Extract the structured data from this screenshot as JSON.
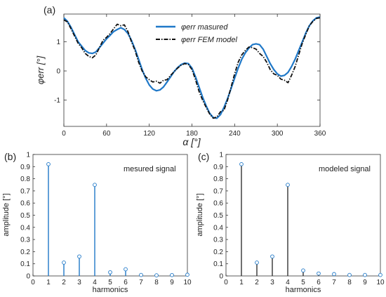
{
  "colors": {
    "measured": "#1f78c8",
    "model": "#111111",
    "stem_b": "#1f78c8",
    "stem_c": "#333333",
    "axis": "#333333"
  },
  "panel_a": {
    "letter": "(a)"
  },
  "panel_b": {
    "letter": "(b)",
    "annotation": "mesured signal"
  },
  "panel_c": {
    "letter": "(c)",
    "annotation": "modeled signal"
  },
  "chart_data": [
    {
      "type": "line",
      "xlabel": "α [°]",
      "ylabel": "φerr [°]",
      "xlim": [
        0,
        360
      ],
      "ylim": [
        -1.9,
        1.95
      ],
      "xticks": [
        "0",
        "60",
        "120",
        "180",
        "240",
        "300",
        "360"
      ],
      "yticks": [
        "-1",
        "0",
        "1"
      ],
      "legend_position": "top-center",
      "series": [
        {
          "name": "φerr masured",
          "style": "solid",
          "x": [
            0,
            5,
            10,
            15,
            20,
            25,
            30,
            35,
            40,
            45,
            50,
            55,
            60,
            65,
            70,
            75,
            80,
            85,
            90,
            95,
            100,
            105,
            110,
            115,
            120,
            125,
            130,
            135,
            140,
            145,
            150,
            155,
            160,
            165,
            170,
            175,
            180,
            185,
            190,
            195,
            200,
            205,
            210,
            215,
            220,
            225,
            230,
            235,
            240,
            245,
            250,
            255,
            260,
            265,
            270,
            275,
            280,
            285,
            290,
            295,
            300,
            305,
            310,
            315,
            320,
            325,
            330,
            335,
            340,
            345,
            350,
            355,
            360
          ],
          "y": [
            1.82,
            1.7,
            1.5,
            1.25,
            1.0,
            0.85,
            0.7,
            0.62,
            0.6,
            0.65,
            0.8,
            0.95,
            1.1,
            1.22,
            1.35,
            1.42,
            1.48,
            1.42,
            1.28,
            1.05,
            0.75,
            0.4,
            0.05,
            -0.25,
            -0.48,
            -0.62,
            -0.68,
            -0.65,
            -0.55,
            -0.38,
            -0.2,
            -0.02,
            0.12,
            0.22,
            0.27,
            0.25,
            0.1,
            -0.2,
            -0.55,
            -0.9,
            -1.2,
            -1.45,
            -1.6,
            -1.62,
            -1.5,
            -1.25,
            -0.95,
            -0.6,
            -0.25,
            0.1,
            0.4,
            0.62,
            0.78,
            0.9,
            0.93,
            0.9,
            0.75,
            0.5,
            0.25,
            0.05,
            -0.1,
            -0.18,
            -0.15,
            -0.05,
            0.15,
            0.4,
            0.7,
            1.0,
            1.3,
            1.55,
            1.72,
            1.82,
            1.85
          ]
        },
        {
          "name": "φerr FEM model",
          "style": "dashdot",
          "x": [
            0,
            5,
            10,
            15,
            20,
            25,
            30,
            35,
            40,
            45,
            50,
            55,
            60,
            65,
            70,
            75,
            80,
            85,
            90,
            95,
            100,
            105,
            110,
            115,
            120,
            125,
            130,
            135,
            140,
            145,
            150,
            155,
            160,
            165,
            170,
            175,
            180,
            185,
            190,
            195,
            200,
            205,
            210,
            215,
            220,
            225,
            230,
            235,
            240,
            245,
            250,
            255,
            260,
            265,
            270,
            275,
            280,
            285,
            290,
            295,
            300,
            305,
            310,
            315,
            320,
            325,
            330,
            335,
            340,
            345,
            350,
            355,
            360
          ],
          "y": [
            1.75,
            1.68,
            1.45,
            1.2,
            0.95,
            0.8,
            0.6,
            0.5,
            0.45,
            0.55,
            0.8,
            1.05,
            1.15,
            1.28,
            1.45,
            1.6,
            1.55,
            1.58,
            1.35,
            1.0,
            0.7,
            0.3,
            0.0,
            -0.2,
            -0.3,
            -0.38,
            -0.35,
            -0.42,
            -0.32,
            -0.3,
            -0.15,
            -0.02,
            0.1,
            0.2,
            0.25,
            0.22,
            0.05,
            -0.3,
            -0.7,
            -1.0,
            -1.25,
            -1.48,
            -1.62,
            -1.58,
            -1.4,
            -1.35,
            -1.0,
            -0.55,
            -0.1,
            0.3,
            0.55,
            0.7,
            0.82,
            0.8,
            0.75,
            0.6,
            0.5,
            0.3,
            0.05,
            -0.1,
            -0.15,
            -0.28,
            -0.32,
            -0.4,
            -0.15,
            0.15,
            0.55,
            0.95,
            1.25,
            1.55,
            1.7,
            1.8,
            1.82
          ]
        }
      ]
    },
    {
      "type": "bar",
      "style": "stem",
      "xlabel": "harmonics",
      "ylabel": "amplitude [°]",
      "xlim": [
        0,
        10
      ],
      "ylim": [
        0,
        1
      ],
      "xticks": [
        "0",
        "1",
        "2",
        "3",
        "4",
        "5",
        "6",
        "7",
        "8",
        "9",
        "10"
      ],
      "yticks": [
        "0",
        "0.1",
        "0.2",
        "0.3",
        "0.4",
        "0.5",
        "0.6",
        "0.7",
        "0.8",
        "0.9",
        "1"
      ],
      "categories": [
        1,
        2,
        3,
        4,
        5,
        6,
        7,
        8,
        9,
        10
      ],
      "values": [
        0.92,
        0.11,
        0.16,
        0.75,
        0.03,
        0.055,
        0.008,
        0.005,
        0.007,
        0.01
      ]
    },
    {
      "type": "bar",
      "style": "stem",
      "xlabel": "harmonics",
      "ylabel": "amplitude [°]",
      "xlim": [
        0,
        10
      ],
      "ylim": [
        0,
        1
      ],
      "xticks": [
        "0",
        "1",
        "2",
        "3",
        "4",
        "5",
        "6",
        "7",
        "8",
        "9",
        "10"
      ],
      "yticks": [
        "0",
        "0.1",
        "0.2",
        "0.3",
        "0.4",
        "0.5",
        "0.6",
        "0.7",
        "0.8",
        "0.9",
        "1"
      ],
      "categories": [
        1,
        2,
        3,
        4,
        5,
        6,
        7,
        8,
        9,
        10
      ],
      "values": [
        0.92,
        0.11,
        0.16,
        0.75,
        0.045,
        0.02,
        0.015,
        0.008,
        0.008,
        0.008
      ]
    }
  ]
}
